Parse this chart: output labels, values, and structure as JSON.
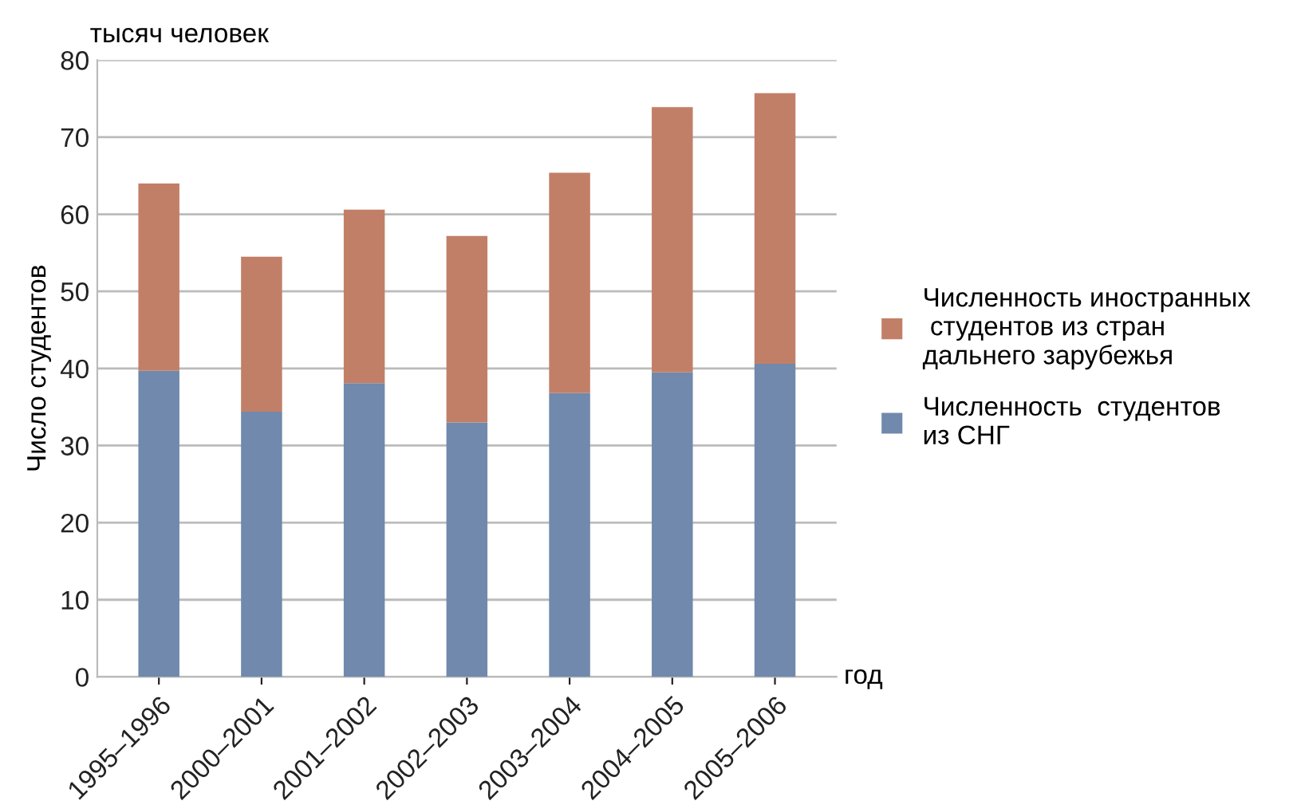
{
  "chart_data": {
    "type": "bar",
    "stacked": true,
    "categories": [
      "1995–1996",
      "2000–2001",
      "2001–2002",
      "2002–2003",
      "2003–2004",
      "2004–2005",
      "2005–2006"
    ],
    "series": [
      {
        "name": "Численность  студентов\nиз СНГ",
        "color": "#7089ad",
        "values": [
          39.7,
          34.4,
          38.1,
          33.0,
          36.8,
          39.5,
          40.6
        ]
      },
      {
        "name": "Численность иностранных\n студентов из стран\nдальнего зарубежья",
        "color": "#c27f68",
        "values": [
          24.3,
          20.1,
          22.5,
          24.2,
          28.6,
          34.4,
          35.1
        ]
      }
    ],
    "ylabel": "Число студентов",
    "xlabel": "год",
    "annotations": [
      "тысяч человек"
    ],
    "ylim": [
      0,
      80
    ],
    "yticks": [
      0,
      10,
      20,
      30,
      40,
      50,
      60,
      70,
      80
    ],
    "grid": "y",
    "legend": "right"
  }
}
